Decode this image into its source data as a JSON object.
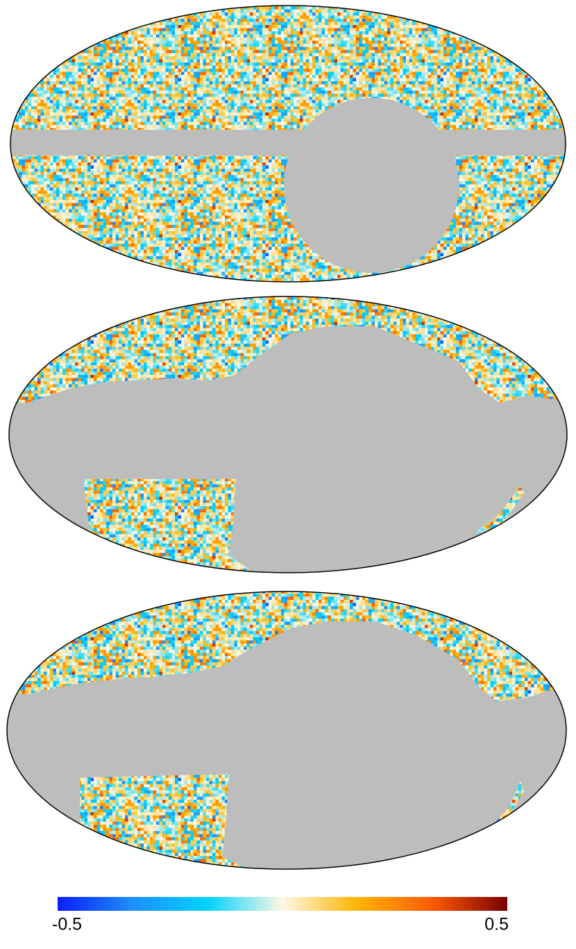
{
  "chart_data": {
    "type": "skymap",
    "xlim": [
      -0.5,
      0.5
    ],
    "xticks": [
      -0.5,
      0.5
    ],
    "colormap": [
      "#0a1eff",
      "#1e8fff",
      "#00d2ff",
      "#fff8e6",
      "#ffb400",
      "#ff5a00",
      "#780000"
    ],
    "mask_color": "#bdbdbd"
  }
}
